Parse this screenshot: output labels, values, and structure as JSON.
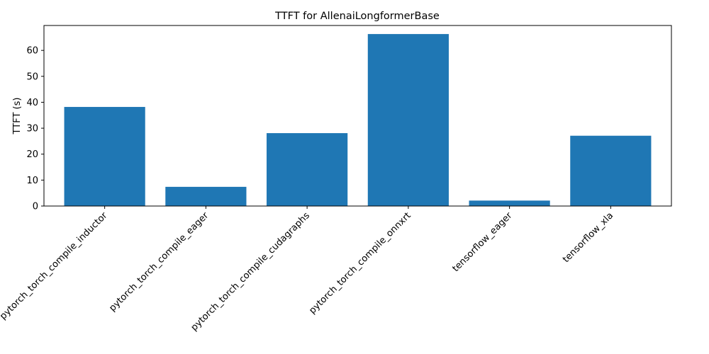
{
  "chart_data": {
    "type": "bar",
    "title": "TTFT for AllenaiLongformerBase",
    "xlabel": "",
    "ylabel": "TTFT (s)",
    "categories": [
      "pytorch_torch_compile_inductor",
      "pytorch_torch_compile_eager",
      "pytorch_torch_compile_cudagraphs",
      "pytorch_torch_compile_onnxrt",
      "tensorflow_eager",
      "tensorflow_xla"
    ],
    "values": [
      38.2,
      7.4,
      28.1,
      66.3,
      2.1,
      27.1
    ],
    "ylim": [
      0,
      69.6
    ],
    "yticks": [
      0,
      10,
      20,
      30,
      40,
      50,
      60
    ],
    "bar_color": "#1f77b4",
    "grid": false,
    "legend": "none"
  }
}
